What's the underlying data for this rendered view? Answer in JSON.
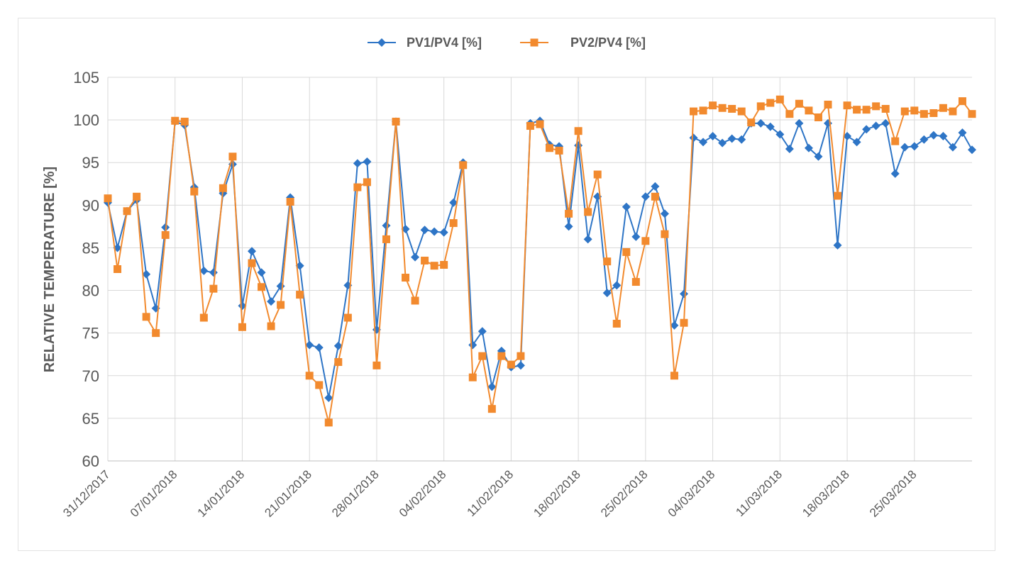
{
  "chart_data": {
    "type": "line",
    "title": "",
    "xlabel": "",
    "ylabel": "RELATIVE TEMPERATURE [%]",
    "ylim": [
      60,
      105
    ],
    "yticks": [
      60,
      65,
      70,
      75,
      80,
      85,
      90,
      95,
      100,
      105
    ],
    "grid": true,
    "legend_position": "top-center",
    "x_start": "31/12/2017",
    "xticks": [
      {
        "label": "31/12/2017",
        "index": 0
      },
      {
        "label": "07/01/2018",
        "index": 7
      },
      {
        "label": "14/01/2018",
        "index": 14
      },
      {
        "label": "21/01/2018",
        "index": 21
      },
      {
        "label": "28/01/2018",
        "index": 28
      },
      {
        "label": "04/02/2018",
        "index": 35
      },
      {
        "label": "11/02/2018",
        "index": 42
      },
      {
        "label": "18/02/2018",
        "index": 49
      },
      {
        "label": "25/02/2018",
        "index": 56
      },
      {
        "label": "04/03/2018",
        "index": 63
      },
      {
        "label": "11/03/2018",
        "index": 70
      },
      {
        "label": "18/03/2018",
        "index": 77
      },
      {
        "label": "25/03/2018",
        "index": 84
      }
    ],
    "series": [
      {
        "name": "PV1/PV4 [%]",
        "color": "#2e75c6",
        "marker": "diamond",
        "values": [
          90.3,
          85.0,
          89.3,
          90.6,
          81.9,
          77.9,
          87.4,
          99.8,
          99.4,
          92.1,
          82.3,
          82.1,
          91.4,
          94.8,
          78.2,
          84.6,
          82.1,
          78.7,
          80.5,
          90.9,
          82.9,
          73.6,
          73.3,
          67.4,
          73.5,
          80.6,
          94.9,
          95.1,
          75.4,
          87.6,
          99.8,
          87.2,
          83.9,
          87.1,
          86.9,
          86.8,
          90.3,
          95.0,
          73.6,
          75.2,
          68.7,
          72.9,
          71.0,
          71.2,
          99.6,
          99.9,
          97.1,
          96.9,
          87.5,
          97.0,
          86.0,
          91.0,
          79.7,
          80.6,
          89.8,
          86.3,
          91.0,
          92.2,
          89.0,
          75.9,
          79.6,
          97.9,
          97.4,
          98.1,
          97.3,
          97.8,
          97.7,
          99.6,
          99.6,
          99.2,
          98.3,
          96.6,
          99.6,
          96.7,
          95.7,
          99.6,
          85.3,
          98.1,
          97.4,
          98.9,
          99.3,
          99.6,
          93.7,
          96.8,
          96.9,
          97.7,
          98.2,
          98.1,
          96.8,
          98.5,
          96.5
        ]
      },
      {
        "name": "PV2/PV4 [%]",
        "color": "#f28a2e",
        "marker": "square",
        "values": [
          90.8,
          82.5,
          89.3,
          91.0,
          76.9,
          75.0,
          86.5,
          99.9,
          99.8,
          91.6,
          76.8,
          80.2,
          92.0,
          95.7,
          75.7,
          83.2,
          80.4,
          75.8,
          78.3,
          90.4,
          79.5,
          70.0,
          68.9,
          64.5,
          71.6,
          76.8,
          92.1,
          92.7,
          71.2,
          86.0,
          99.8,
          81.5,
          78.8,
          83.5,
          82.9,
          83.0,
          87.9,
          94.7,
          69.8,
          72.3,
          66.1,
          72.3,
          71.3,
          72.3,
          99.3,
          99.5,
          96.7,
          96.4,
          89.0,
          98.7,
          89.2,
          93.6,
          83.4,
          76.1,
          84.5,
          81.0,
          85.8,
          91.0,
          86.6,
          70.0,
          76.2,
          101.0,
          101.1,
          101.7,
          101.4,
          101.3,
          101.0,
          99.7,
          101.6,
          102.0,
          102.4,
          100.7,
          101.9,
          101.1,
          100.3,
          101.8,
          91.1,
          101.7,
          101.2,
          101.2,
          101.6,
          101.3,
          97.5,
          101.0,
          101.1,
          100.7,
          100.8,
          101.4,
          101.0,
          102.2,
          100.7
        ]
      }
    ]
  }
}
